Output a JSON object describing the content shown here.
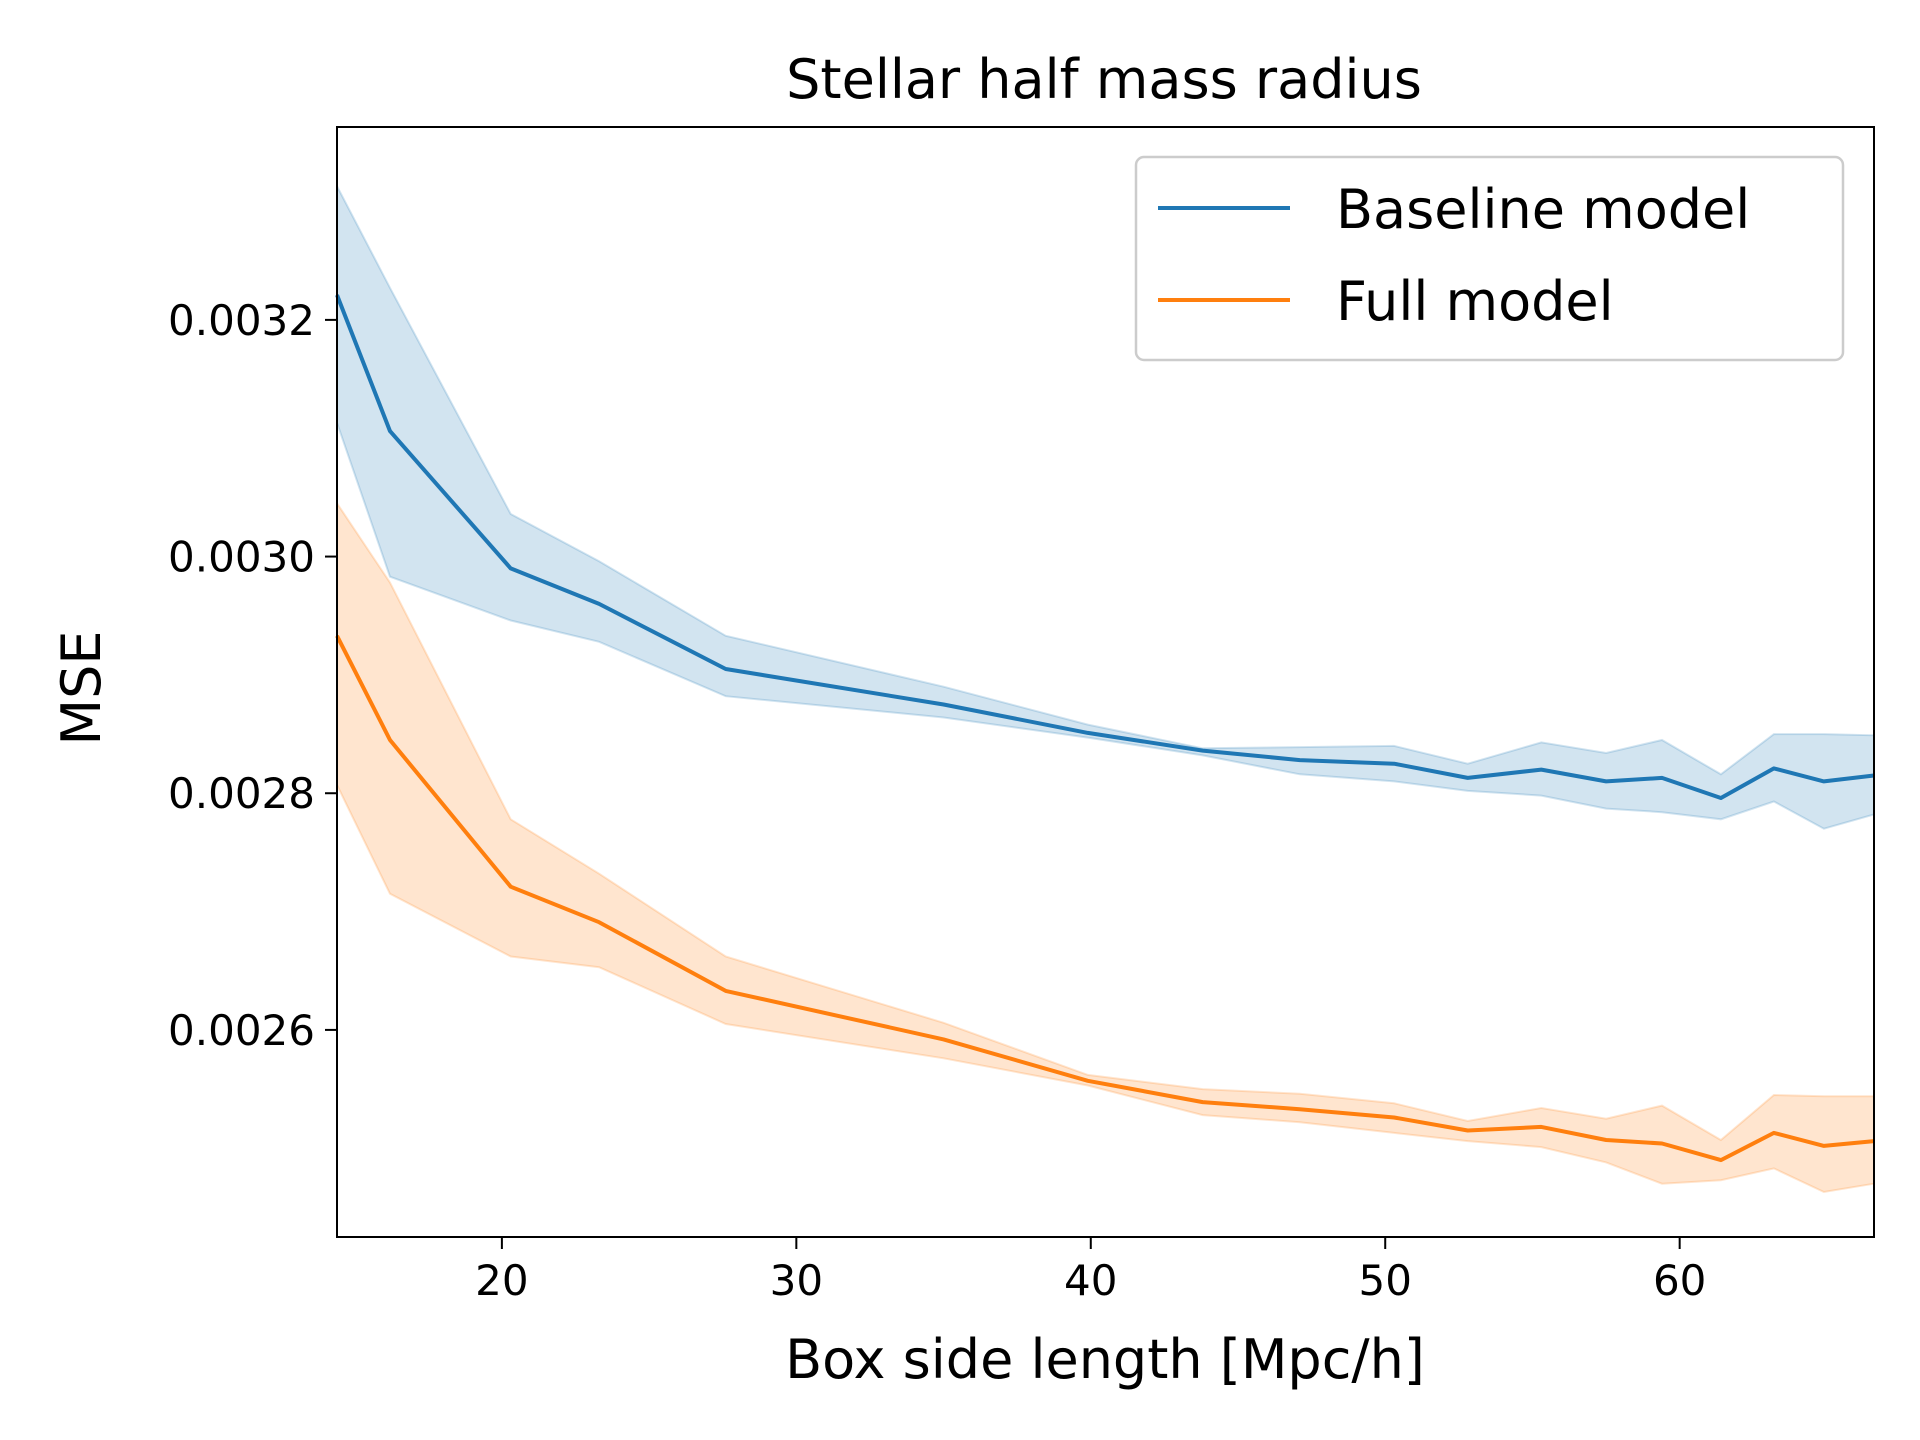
{
  "chart_data": {
    "type": "line",
    "title": "Stellar half mass radius",
    "xlabel": "Box side length [Mpc/h]",
    "ylabel": "MSE",
    "xlim": [
      14.4,
      66.6
    ],
    "ylim": [
      0.002425,
      0.003363
    ],
    "xticks": [
      20,
      30,
      40,
      50,
      60
    ],
    "xtick_labels": [
      "20",
      "30",
      "40",
      "50",
      "60"
    ],
    "yticks": [
      0.0026,
      0.0028,
      0.003,
      0.0032
    ],
    "ytick_labels": [
      "0.0026",
      "0.0028",
      "0.0030",
      "0.0032"
    ],
    "legend_position": "top-right",
    "grid": false,
    "x": [
      14.4,
      16.2,
      20.3,
      23.3,
      27.6,
      35.0,
      39.9,
      43.8,
      47.1,
      50.3,
      52.8,
      55.3,
      57.5,
      59.4,
      61.4,
      63.2,
      64.9,
      66.6
    ],
    "series": [
      {
        "name": "Baseline model",
        "color": "#1f77b4",
        "band_color": "#1f77b4",
        "values": [
          0.003221,
          0.003106,
          0.00299,
          0.00296,
          0.002905,
          0.002875,
          0.002851,
          0.002836,
          0.002828,
          0.002825,
          0.002813,
          0.00282,
          0.00281,
          0.002813,
          0.002796,
          0.002821,
          0.00281,
          0.002815
        ],
        "upper": [
          0.003313,
          0.003227,
          0.003036,
          0.002996,
          0.002933,
          0.00289,
          0.002858,
          0.002838,
          0.002839,
          0.00284,
          0.002825,
          0.002843,
          0.002834,
          0.002845,
          0.002816,
          0.00285,
          0.00285,
          0.002849
        ],
        "lower": [
          0.003113,
          0.002983,
          0.002946,
          0.002928,
          0.002882,
          0.002864,
          0.002847,
          0.002832,
          0.002816,
          0.00281,
          0.002802,
          0.002798,
          0.002787,
          0.002784,
          0.002778,
          0.002793,
          0.00277,
          0.002782
        ]
      },
      {
        "name": "Full model",
        "color": "#ff7f0e",
        "band_color": "#ff7f0e",
        "values": [
          0.002933,
          0.002845,
          0.002721,
          0.002691,
          0.002633,
          0.002592,
          0.002557,
          0.002539,
          0.002533,
          0.002526,
          0.002515,
          0.002518,
          0.002507,
          0.002504,
          0.00249,
          0.002513,
          0.002502,
          0.002506
        ],
        "upper": [
          0.003045,
          0.002978,
          0.002778,
          0.002732,
          0.002662,
          0.002606,
          0.002562,
          0.00255,
          0.002546,
          0.002538,
          0.002523,
          0.002534,
          0.002525,
          0.002536,
          0.002507,
          0.002545,
          0.002544,
          0.002544
        ],
        "lower": [
          0.002807,
          0.002715,
          0.002662,
          0.002653,
          0.002605,
          0.002576,
          0.002553,
          0.002528,
          0.002522,
          0.002513,
          0.002506,
          0.002501,
          0.002488,
          0.00247,
          0.002473,
          0.002483,
          0.002463,
          0.00247
        ]
      }
    ]
  }
}
